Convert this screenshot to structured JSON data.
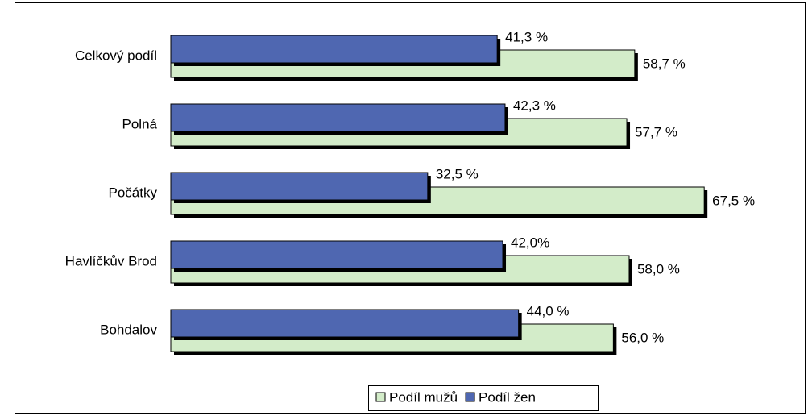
{
  "chart_data": {
    "type": "bar",
    "orientation": "horizontal",
    "categories": [
      "Celkový podíl",
      "Polná",
      "Počátky",
      "Havlíčkův Brod",
      "Bohdalov"
    ],
    "series": [
      {
        "name": "Podíl mužů",
        "color": "#d3ecc9",
        "values": [
          58.7,
          57.7,
          67.5,
          58.0,
          56.0
        ],
        "value_labels": [
          "58,7 %",
          "57,7 %",
          "67,5 %",
          "58,0 %",
          "56,0 %"
        ]
      },
      {
        "name": "Podíl žen",
        "color": "#4f67b1",
        "values": [
          41.3,
          42.3,
          32.5,
          42.0,
          44.0
        ],
        "value_labels": [
          "41,3 %",
          "42,3 %",
          "32,5 %",
          "42,0%",
          "44,0 %"
        ]
      }
    ],
    "legend": "bottom"
  }
}
